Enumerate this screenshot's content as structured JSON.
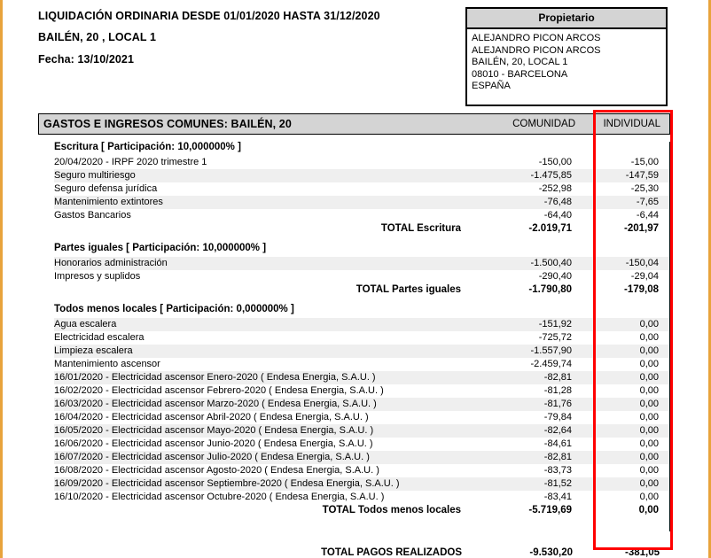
{
  "colors": {
    "page_border": "#E8A33C",
    "header_bg": "#D4D4D4",
    "row_stripe": "#EFEFEF",
    "highlight_red": "#FF0000"
  },
  "header": {
    "title": "LIQUIDACIÓN ORDINARIA DESDE 01/01/2020 HASTA 31/12/2020",
    "subtitle": "BAILÉN, 20 , LOCAL 1",
    "date_line": "Fecha: 13/10/2021"
  },
  "owner_box": {
    "title": "Propietario",
    "lines": [
      "ALEJANDRO PICON ARCOS",
      "ALEJANDRO PICON ARCOS",
      "BAILÉN, 20, LOCAL 1",
      "08010 - BARCELONA",
      "ESPAÑA"
    ]
  },
  "table": {
    "title": "GASTOS E INGRESOS COMUNES: BAILÉN, 20",
    "columns": {
      "comunidad": "COMUNIDAD",
      "individual": "INDIVIDUAL"
    },
    "sections": [
      {
        "heading": "Escritura [ Participación: 10,000000% ]",
        "rows": [
          {
            "label": "20/04/2020 - IRPF 2020 trimestre 1",
            "comunidad": "-150,00",
            "individual": "-15,00"
          },
          {
            "label": "Seguro multiriesgo",
            "comunidad": "-1.475,85",
            "individual": "-147,59"
          },
          {
            "label": "Seguro defensa jurídica",
            "comunidad": "-252,98",
            "individual": "-25,30"
          },
          {
            "label": "Mantenimiento extintores",
            "comunidad": "-76,48",
            "individual": "-7,65"
          },
          {
            "label": "Gastos Bancarios",
            "comunidad": "-64,40",
            "individual": "-6,44"
          }
        ],
        "total": {
          "label": "TOTAL Escritura",
          "comunidad": "-2.019,71",
          "individual": "-201,97"
        }
      },
      {
        "heading": "Partes iguales [ Participación: 10,000000% ]",
        "rows": [
          {
            "label": "Honorarios administración",
            "comunidad": "-1.500,40",
            "individual": "-150,04"
          },
          {
            "label": "Impresos y suplidos",
            "comunidad": "-290,40",
            "individual": "-29,04"
          }
        ],
        "total": {
          "label": "TOTAL Partes iguales",
          "comunidad": "-1.790,80",
          "individual": "-179,08"
        }
      },
      {
        "heading": "Todos menos locales [ Participación: 0,000000% ]",
        "rows": [
          {
            "label": "Agua escalera",
            "comunidad": "-151,92",
            "individual": "0,00"
          },
          {
            "label": "Electricidad escalera",
            "comunidad": "-725,72",
            "individual": "0,00"
          },
          {
            "label": "Limpieza escalera",
            "comunidad": "-1.557,90",
            "individual": "0,00"
          },
          {
            "label": "Mantenimiento ascensor",
            "comunidad": "-2.459,74",
            "individual": "0,00"
          },
          {
            "label": "16/01/2020 - Electricidad ascensor Enero-2020 ( Endesa Energia, S.A.U. )",
            "comunidad": "-82,81",
            "individual": "0,00"
          },
          {
            "label": "16/02/2020 - Electricidad ascensor Febrero-2020 ( Endesa Energia, S.A.U. )",
            "comunidad": "-81,28",
            "individual": "0,00"
          },
          {
            "label": "16/03/2020 - Electricidad ascensor Marzo-2020 ( Endesa Energia, S.A.U. )",
            "comunidad": "-81,76",
            "individual": "0,00"
          },
          {
            "label": "16/04/2020 - Electricidad ascensor Abril-2020 ( Endesa Energia, S.A.U. )",
            "comunidad": "-79,84",
            "individual": "0,00"
          },
          {
            "label": "16/05/2020 - Electricidad ascensor Mayo-2020 ( Endesa Energia, S.A.U. )",
            "comunidad": "-82,64",
            "individual": "0,00"
          },
          {
            "label": "16/06/2020 - Electricidad ascensor Junio-2020 ( Endesa Energia, S.A.U. )",
            "comunidad": "-84,61",
            "individual": "0,00"
          },
          {
            "label": "16/07/2020 - Electricidad ascensor Julio-2020 ( Endesa Energia, S.A.U. )",
            "comunidad": "-82,81",
            "individual": "0,00"
          },
          {
            "label": "16/08/2020 - Electricidad ascensor Agosto-2020 ( Endesa Energia, S.A.U. )",
            "comunidad": "-83,73",
            "individual": "0,00"
          },
          {
            "label": "16/09/2020 - Electricidad ascensor Septiembre-2020 ( Endesa Energia, S.A.U. )",
            "comunidad": "-81,52",
            "individual": "0,00"
          },
          {
            "label": "16/10/2020 - Electricidad ascensor Octubre-2020 ( Endesa Energia, S.A.U. )",
            "comunidad": "-83,41",
            "individual": "0,00"
          }
        ],
        "total": {
          "label": "TOTAL Todos menos locales",
          "comunidad": "-5.719,69",
          "individual": "0,00"
        }
      }
    ],
    "grand_total": {
      "label": "TOTAL PAGOS REALIZADOS",
      "comunidad": "-9.530,20",
      "individual": "-381,05"
    }
  }
}
